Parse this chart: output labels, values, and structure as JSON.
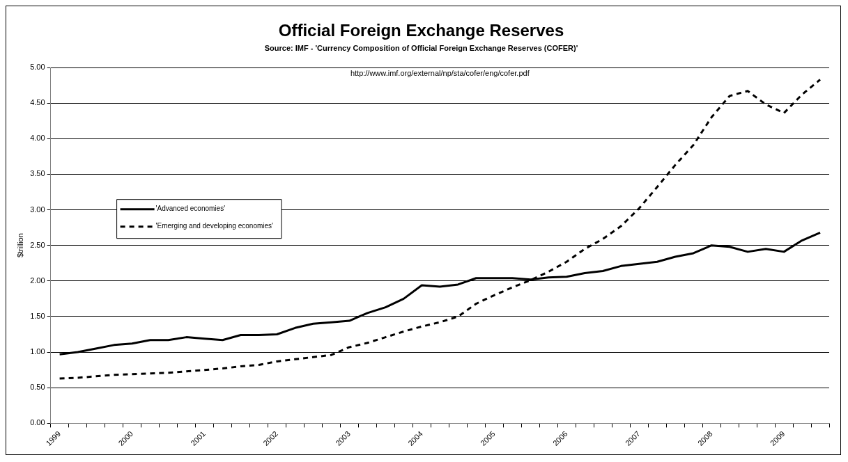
{
  "chart_data": {
    "type": "line",
    "title": "Official Foreign Exchange Reserves",
    "subtitle": "Source: IMF - 'Currency Composition of Official Foreign Exchange Reserves (COFER)'",
    "annotations": [
      "http://www.imf.org/external/np/sta/cofer/eng/cofer.pdf"
    ],
    "ylabel": "$trillion",
    "categories": [
      "1999",
      null,
      null,
      null,
      "2000",
      null,
      null,
      null,
      "2001",
      null,
      null,
      null,
      "2002",
      null,
      null,
      null,
      "2003",
      null,
      null,
      null,
      "2004",
      null,
      null,
      null,
      "2005",
      null,
      null,
      null,
      "2006",
      null,
      null,
      null,
      "2007",
      null,
      null,
      null,
      "2008",
      null,
      null,
      null,
      "2009",
      null,
      null
    ],
    "series": [
      {
        "name": "'Advanced economies'",
        "color": "#000000",
        "line_style": "solid",
        "values": [
          0.97,
          1.0,
          1.05,
          1.1,
          1.12,
          1.17,
          1.17,
          1.21,
          1.19,
          1.17,
          1.24,
          1.24,
          1.25,
          1.34,
          1.4,
          1.42,
          1.44,
          1.55,
          1.63,
          1.75,
          1.94,
          1.92,
          1.95,
          2.04,
          2.04,
          2.04,
          2.02,
          2.05,
          2.06,
          2.11,
          2.14,
          2.21,
          2.24,
          2.27,
          2.34,
          2.39,
          2.5,
          2.48,
          2.41,
          2.45,
          2.41,
          2.57,
          2.68
        ]
      },
      {
        "name": "'Emerging and developing economies'",
        "color": "#000000",
        "line_style": "dashed",
        "values": [
          0.63,
          0.64,
          0.66,
          0.68,
          0.69,
          0.7,
          0.71,
          0.73,
          0.75,
          0.77,
          0.8,
          0.82,
          0.87,
          0.9,
          0.93,
          0.96,
          1.07,
          1.13,
          1.21,
          1.29,
          1.36,
          1.42,
          1.5,
          1.68,
          1.8,
          1.91,
          2.01,
          2.13,
          2.27,
          2.45,
          2.59,
          2.77,
          3.02,
          3.32,
          3.63,
          3.91,
          4.3,
          4.6,
          4.67,
          4.48,
          4.36,
          4.62,
          4.83
        ]
      }
    ],
    "ylim": [
      0,
      5
    ],
    "yticks": [
      {
        "value": 0,
        "label": "0.00"
      },
      {
        "value": 0.5,
        "label": "0.50"
      },
      {
        "value": 1,
        "label": "1.00"
      },
      {
        "value": 1.5,
        "label": "1.50"
      },
      {
        "value": 2,
        "label": "2.00"
      },
      {
        "value": 2.5,
        "label": "2.50"
      },
      {
        "value": 3,
        "label": "3.00"
      },
      {
        "value": 3.5,
        "label": "3.50"
      },
      {
        "value": 4,
        "label": "4.00"
      },
      {
        "value": 4.5,
        "label": "4.50"
      },
      {
        "value": 5,
        "label": "5.00"
      }
    ],
    "grid": "y",
    "legend": "left"
  }
}
